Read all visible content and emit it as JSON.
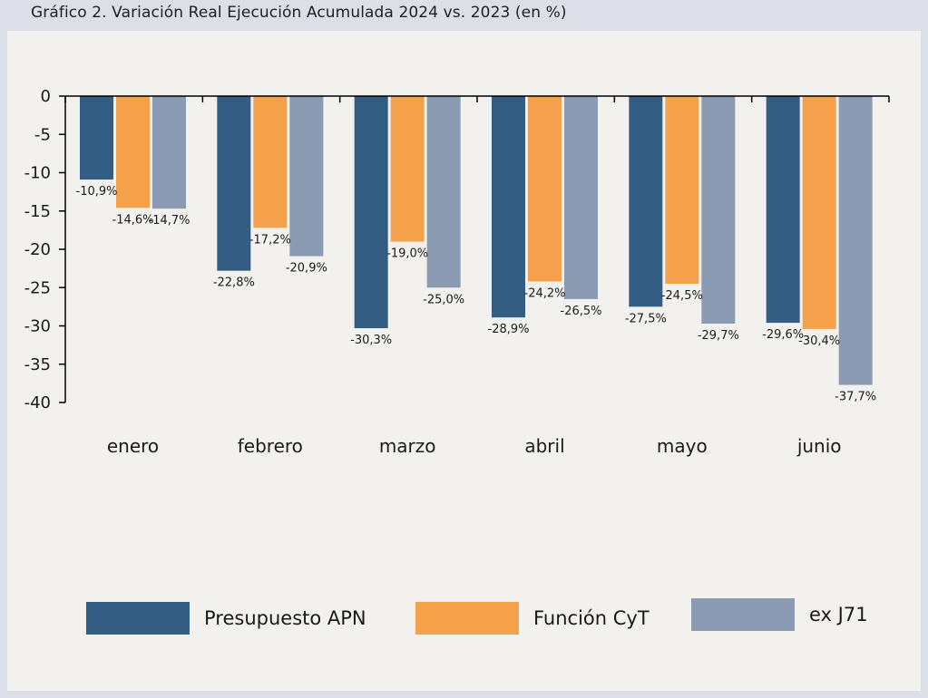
{
  "title": "Gráfico 2. Variación Real Ejecución Acumulada 2024 vs. 2023 (en %)",
  "colors": {
    "series1": "#345d84",
    "series2": "#f5a04a",
    "series3": "#8b9bb4",
    "background": "#f2f1ee",
    "frame": "#dcdfe7"
  },
  "chart_data": {
    "type": "bar",
    "title": "Gráfico 2. Variación Real Ejecución Acumulada 2024 vs. 2023 (en %)",
    "categories": [
      "enero",
      "febrero",
      "marzo",
      "abril",
      "mayo",
      "junio"
    ],
    "series": [
      {
        "name": "Presupuesto APN",
        "values": [
          -10.9,
          -22.8,
          -30.3,
          -28.9,
          -27.5,
          -29.6
        ],
        "labels": [
          "-10,9%",
          "-22,8%",
          "-30,3%",
          "-28,9%",
          "-27,5%",
          "-29,6%"
        ]
      },
      {
        "name": "Función CyT",
        "values": [
          -14.6,
          -17.2,
          -19.0,
          -24.2,
          -24.5,
          -30.4
        ],
        "labels": [
          "-14,6%",
          "-17,2%",
          "-19,0%",
          "-24,2%",
          "-24,5%",
          "-30,4%"
        ]
      },
      {
        "name": "ex J71",
        "values": [
          -14.7,
          -20.9,
          -25.0,
          -26.5,
          -29.7,
          -37.7
        ],
        "labels": [
          "-14,7%",
          "-20,9%",
          "-25,0%",
          "-26,5%",
          "-29,7%",
          "-37,7%"
        ]
      }
    ],
    "ylim": [
      -40,
      0
    ],
    "yticks": [
      0,
      -5,
      -10,
      -15,
      -20,
      -25,
      -30,
      -35,
      -40
    ],
    "ytick_labels": [
      "0",
      "-5",
      "-10",
      "-15",
      "-20",
      "-25",
      "-30",
      "-35",
      "-40"
    ],
    "xlabel": "",
    "ylabel": "",
    "grid": false,
    "legend_position": "bottom"
  },
  "legend": [
    {
      "label": "Presupuesto APN"
    },
    {
      "label": "Función CyT"
    },
    {
      "label": "ex J71"
    }
  ]
}
